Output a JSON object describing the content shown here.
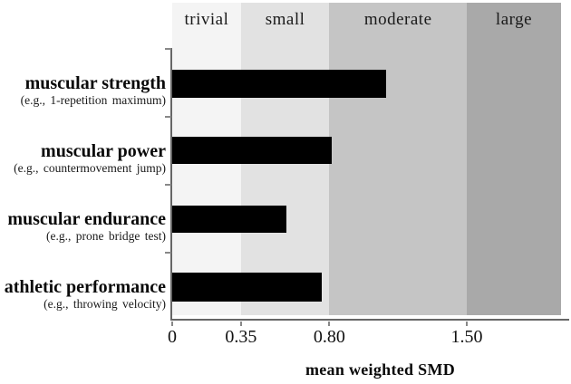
{
  "chart_data": {
    "type": "bar",
    "orientation": "horizontal",
    "title": "",
    "xlabel": "mean weighted SMD",
    "ylabel": "",
    "xlim": [
      0,
      1.98
    ],
    "grid": false,
    "bar_color": "#000000",
    "categories": [
      "muscular strength",
      "muscular power",
      "muscular endurance",
      "athletic performance"
    ],
    "category_examples": [
      "(e.g., 1-repetition maximum)",
      "(e.g., countermovement jump)",
      "(e.g., prone bridge test)",
      "(e.g., throwing velocity)"
    ],
    "values": [
      1.09,
      0.81,
      0.58,
      0.76
    ],
    "x_ticks": [
      0,
      0.35,
      0.8,
      1.5
    ],
    "x_tick_labels": [
      "0",
      "0.35",
      "0.80",
      "1.50"
    ],
    "bands": [
      {
        "label": "trivial",
        "from": 0,
        "to": 0.35,
        "color": "#f4f4f4"
      },
      {
        "label": "small",
        "from": 0.35,
        "to": 0.8,
        "color": "#e2e2e2"
      },
      {
        "label": "moderate",
        "from": 0.8,
        "to": 1.5,
        "color": "#c5c5c5"
      },
      {
        "label": "large",
        "from": 1.5,
        "to": 1.98,
        "color": "#a9a9a9"
      }
    ]
  }
}
